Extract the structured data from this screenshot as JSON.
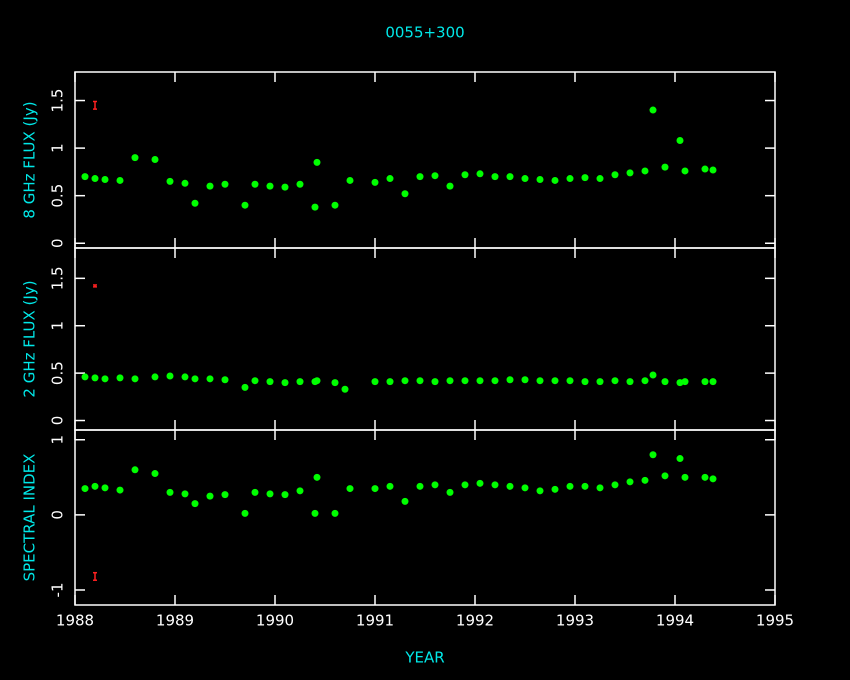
{
  "chart_data": [
    {
      "type": "scatter",
      "title": "0055+300",
      "ylabel": "8 GHz FLUX (Jy)",
      "color": "#00ff00",
      "x": [
        1988.1,
        1988.2,
        1988.3,
        1988.45,
        1988.6,
        1988.8,
        1988.95,
        1989.1,
        1989.2,
        1989.35,
        1989.5,
        1989.7,
        1989.8,
        1989.95,
        1990.1,
        1990.25,
        1990.4,
        1990.42,
        1990.6,
        1990.75,
        1991.0,
        1991.15,
        1991.3,
        1991.45,
        1991.6,
        1991.75,
        1991.9,
        1992.05,
        1992.2,
        1992.35,
        1992.5,
        1992.65,
        1992.8,
        1992.95,
        1993.1,
        1993.25,
        1993.4,
        1993.55,
        1993.7,
        1993.78,
        1993.9,
        1994.05,
        1994.1,
        1994.3,
        1994.38
      ],
      "values": [
        0.7,
        0.68,
        0.67,
        0.66,
        0.9,
        0.88,
        0.65,
        0.63,
        0.42,
        0.6,
        0.62,
        0.4,
        0.62,
        0.6,
        0.59,
        0.62,
        0.38,
        0.85,
        0.4,
        0.66,
        0.64,
        0.68,
        0.52,
        0.7,
        0.71,
        0.6,
        0.72,
        0.73,
        0.7,
        0.7,
        0.68,
        0.67,
        0.66,
        0.68,
        0.69,
        0.68,
        0.72,
        0.74,
        0.76,
        1.4,
        0.8,
        1.08,
        0.76,
        0.78,
        0.77
      ],
      "error_bar": {
        "x": 1988.2,
        "y": 1.45,
        "err": 0.04
      },
      "xlim": [
        1988,
        1995
      ],
      "xticks": [
        1988,
        1989,
        1990,
        1991,
        1992,
        1993,
        1994,
        1995
      ],
      "ylim": [
        -0.05,
        1.8
      ],
      "yticks": [
        0,
        0.5,
        1,
        1.5
      ]
    },
    {
      "type": "scatter",
      "ylabel": "2 GHz FLUX (Jy)",
      "color": "#00ff00",
      "x": [
        1988.1,
        1988.2,
        1988.3,
        1988.45,
        1988.6,
        1988.8,
        1988.95,
        1989.1,
        1989.2,
        1989.35,
        1989.5,
        1989.7,
        1989.8,
        1989.95,
        1990.1,
        1990.25,
        1990.4,
        1990.42,
        1990.6,
        1990.7,
        1991.0,
        1991.15,
        1991.3,
        1991.45,
        1991.6,
        1991.75,
        1991.9,
        1992.05,
        1992.2,
        1992.35,
        1992.5,
        1992.65,
        1992.8,
        1992.95,
        1993.1,
        1993.25,
        1993.4,
        1993.55,
        1993.7,
        1993.78,
        1993.9,
        1994.05,
        1994.1,
        1994.3,
        1994.38
      ],
      "values": [
        0.46,
        0.45,
        0.44,
        0.45,
        0.44,
        0.46,
        0.47,
        0.46,
        0.44,
        0.44,
        0.43,
        0.35,
        0.42,
        0.41,
        0.4,
        0.41,
        0.41,
        0.42,
        0.4,
        0.33,
        0.41,
        0.41,
        0.42,
        0.42,
        0.41,
        0.42,
        0.42,
        0.42,
        0.42,
        0.43,
        0.43,
        0.42,
        0.42,
        0.42,
        0.41,
        0.41,
        0.42,
        0.41,
        0.42,
        0.48,
        0.41,
        0.4,
        0.41,
        0.41,
        0.41
      ],
      "error_bar": {
        "x": 1988.2,
        "y": 1.42,
        "err": 0.01
      },
      "xlim": [
        1988,
        1995
      ],
      "xticks": [
        1988,
        1989,
        1990,
        1991,
        1992,
        1993,
        1994,
        1995
      ],
      "ylim": [
        -0.1,
        1.82
      ],
      "yticks": [
        0,
        0.5,
        1,
        1.5
      ]
    },
    {
      "type": "scatter",
      "ylabel": "SPECTRAL INDEX",
      "xlabel": "YEAR",
      "color": "#00ff00",
      "x": [
        1988.1,
        1988.2,
        1988.3,
        1988.45,
        1988.6,
        1988.8,
        1988.95,
        1989.1,
        1989.2,
        1989.35,
        1989.5,
        1989.7,
        1989.8,
        1989.95,
        1990.1,
        1990.25,
        1990.4,
        1990.42,
        1990.6,
        1990.75,
        1991.0,
        1991.15,
        1991.3,
        1991.45,
        1991.6,
        1991.75,
        1991.9,
        1992.05,
        1992.2,
        1992.35,
        1992.5,
        1992.65,
        1992.8,
        1992.95,
        1993.1,
        1993.25,
        1993.4,
        1993.55,
        1993.7,
        1993.78,
        1993.9,
        1994.05,
        1994.1,
        1994.3,
        1994.38
      ],
      "values": [
        0.35,
        0.38,
        0.36,
        0.33,
        0.6,
        0.55,
        0.3,
        0.28,
        0.15,
        0.25,
        0.27,
        0.02,
        0.3,
        0.28,
        0.27,
        0.32,
        0.02,
        0.5,
        0.02,
        0.35,
        0.35,
        0.38,
        0.18,
        0.38,
        0.4,
        0.3,
        0.4,
        0.42,
        0.4,
        0.38,
        0.36,
        0.32,
        0.34,
        0.38,
        0.38,
        0.36,
        0.4,
        0.44,
        0.46,
        0.8,
        0.52,
        0.75,
        0.5,
        0.5,
        0.48
      ],
      "error_bar": {
        "x": 1988.2,
        "y": -0.82,
        "err": 0.05
      },
      "xlim": [
        1988,
        1995
      ],
      "xticks": [
        1988,
        1989,
        1990,
        1991,
        1992,
        1993,
        1994,
        1995
      ],
      "ylim": [
        -1.2,
        1.13
      ],
      "yticks": [
        -1,
        0,
        1
      ]
    }
  ]
}
